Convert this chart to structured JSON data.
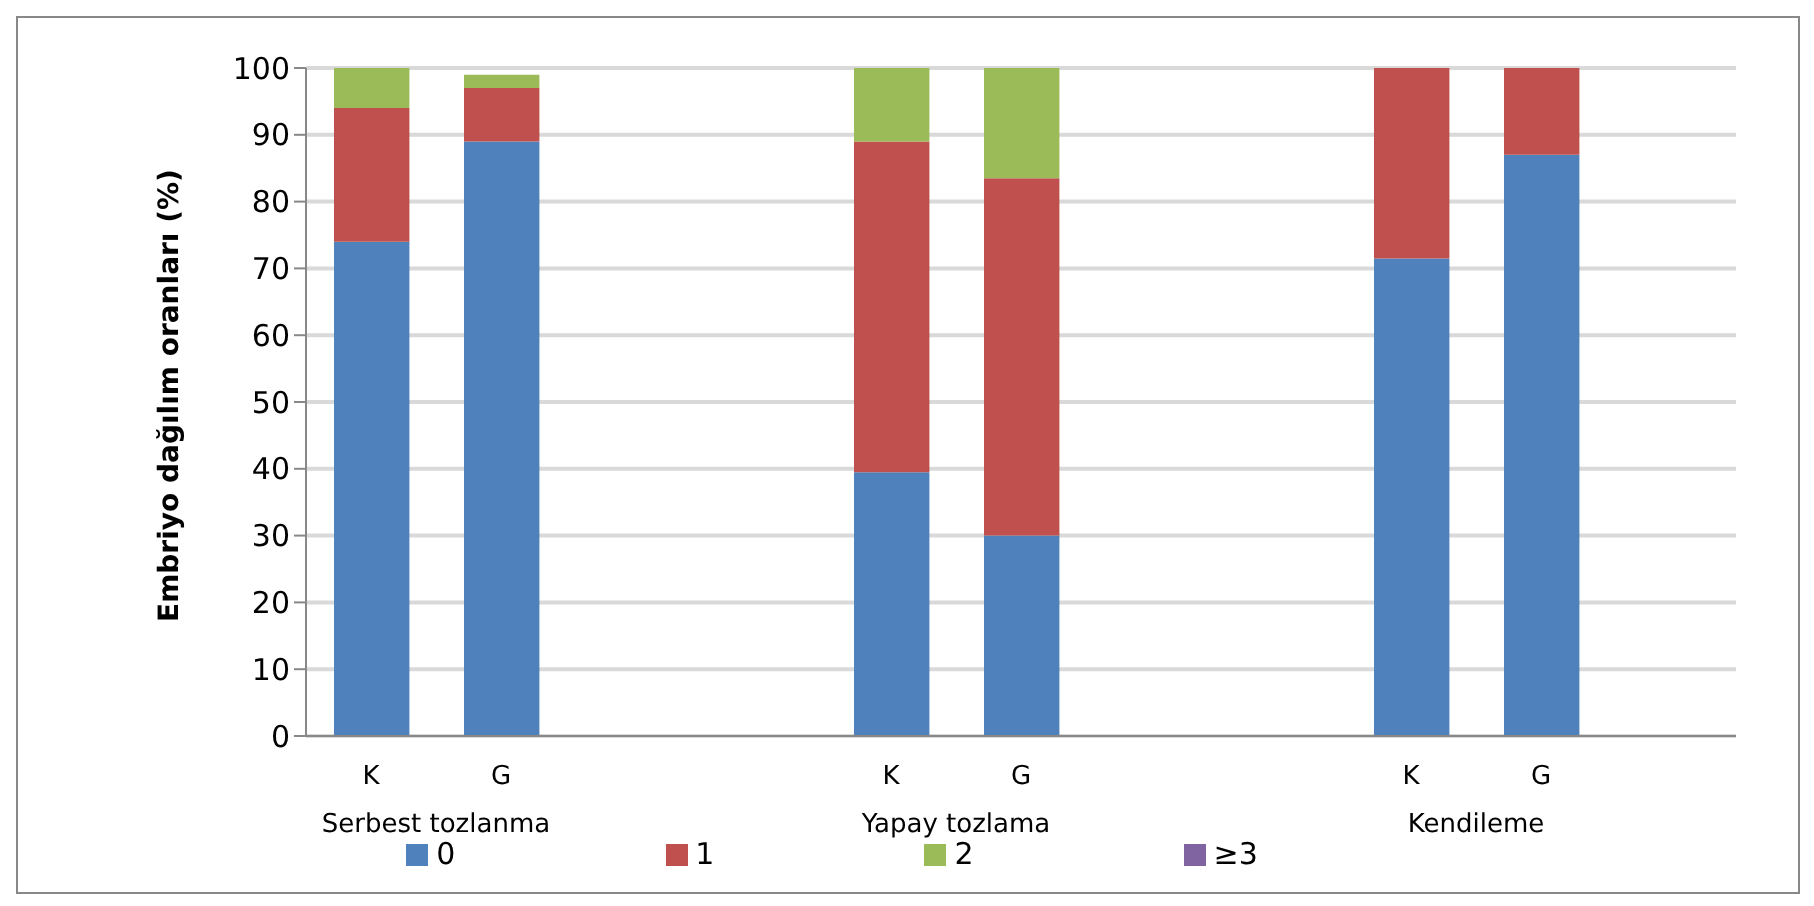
{
  "chart_data": {
    "type": "bar",
    "ylabel": "Embriyo dağılım oranları (%)",
    "stacked": true,
    "categories": [
      "K",
      "G",
      null,
      null,
      "K",
      "G",
      null,
      null,
      "K",
      "G",
      null
    ],
    "series": [
      {
        "name": "0",
        "color": "#4f81bd",
        "values": [
          74,
          89,
          null,
          null,
          39.5,
          30,
          null,
          null,
          71.5,
          87,
          null
        ]
      },
      {
        "name": "1",
        "color": "#c0504d",
        "values": [
          20,
          8,
          null,
          null,
          49.5,
          53.5,
          null,
          null,
          28.5,
          13,
          null
        ]
      },
      {
        "name": "2",
        "color": "#9bbb59",
        "values": [
          6,
          2,
          null,
          null,
          11,
          16.5,
          null,
          null,
          0,
          0,
          null
        ]
      },
      {
        "name": "≥3",
        "color": "#8064a2",
        "values": [
          0,
          0,
          null,
          null,
          0,
          0,
          null,
          null,
          0,
          0,
          null
        ]
      }
    ],
    "annotations": [
      "Serbest tozlanma",
      "Yapay tozlama",
      "Kendileme"
    ],
    "ylim": [
      0,
      100
    ],
    "yticks": [
      0,
      10,
      20,
      30,
      40,
      50,
      60,
      70,
      80,
      90,
      100
    ],
    "grid": "y",
    "legend": "bottom"
  }
}
